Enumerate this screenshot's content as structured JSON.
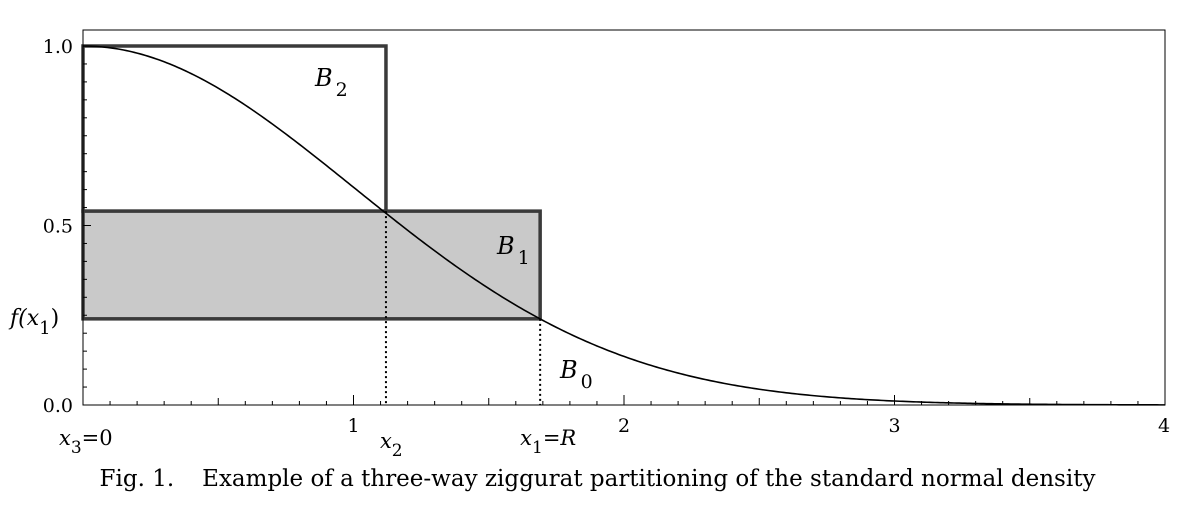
{
  "caption": {
    "label": "Fig. 1.",
    "text": "Example of a three-way ziggurat partitioning of the standard normal density"
  },
  "chart_data": {
    "type": "line",
    "title": "",
    "xlabel": "",
    "ylabel": "",
    "xlim": [
      0,
      4
    ],
    "ylim": [
      0,
      1
    ],
    "x_ticks": [
      {
        "value": 1,
        "label": "1"
      },
      {
        "value": 2,
        "label": "2"
      },
      {
        "value": 3,
        "label": "3"
      },
      {
        "value": 4,
        "label": "4"
      }
    ],
    "y_ticks": [
      {
        "value": 0,
        "label": "0.0"
      },
      {
        "value": 0.5,
        "label": "0.5"
      },
      {
        "value": 1,
        "label": "1.0"
      }
    ],
    "series": [
      {
        "function": "exp(-x^2/2)",
        "x_range": [
          0,
          4
        ]
      }
    ],
    "points": {
      "x3": 0,
      "x2": 1.12,
      "x1": 1.69,
      "f_x1": 0.24,
      "f_x2": 0.54
    },
    "point_labels": {
      "x3": {
        "base": "x",
        "sub": "3",
        "suffix": "=0"
      },
      "x2": {
        "base": "x",
        "sub": "2",
        "suffix": ""
      },
      "x1": {
        "base": "x",
        "sub": "1",
        "suffix": "=R"
      },
      "f_x1": {
        "prefix": "f(x",
        "sub": "1",
        "suffix": ")"
      }
    },
    "regions": [
      {
        "name": "B",
        "sub": "2",
        "x": [
          0,
          1.12
        ],
        "y": [
          0.54,
          1.0
        ],
        "shaded": false
      },
      {
        "name": "B",
        "sub": "1",
        "x": [
          0,
          1.69
        ],
        "y": [
          0.24,
          0.54
        ],
        "shaded": true,
        "fill": "#c9c9c9"
      },
      {
        "name": "B",
        "sub": "0",
        "shaded": false
      }
    ],
    "colors": {
      "curve": "#000000",
      "box_stroke": "#3a3a3a",
      "shade": "#c9c9c9",
      "frame": "#000000"
    },
    "grid": false
  }
}
